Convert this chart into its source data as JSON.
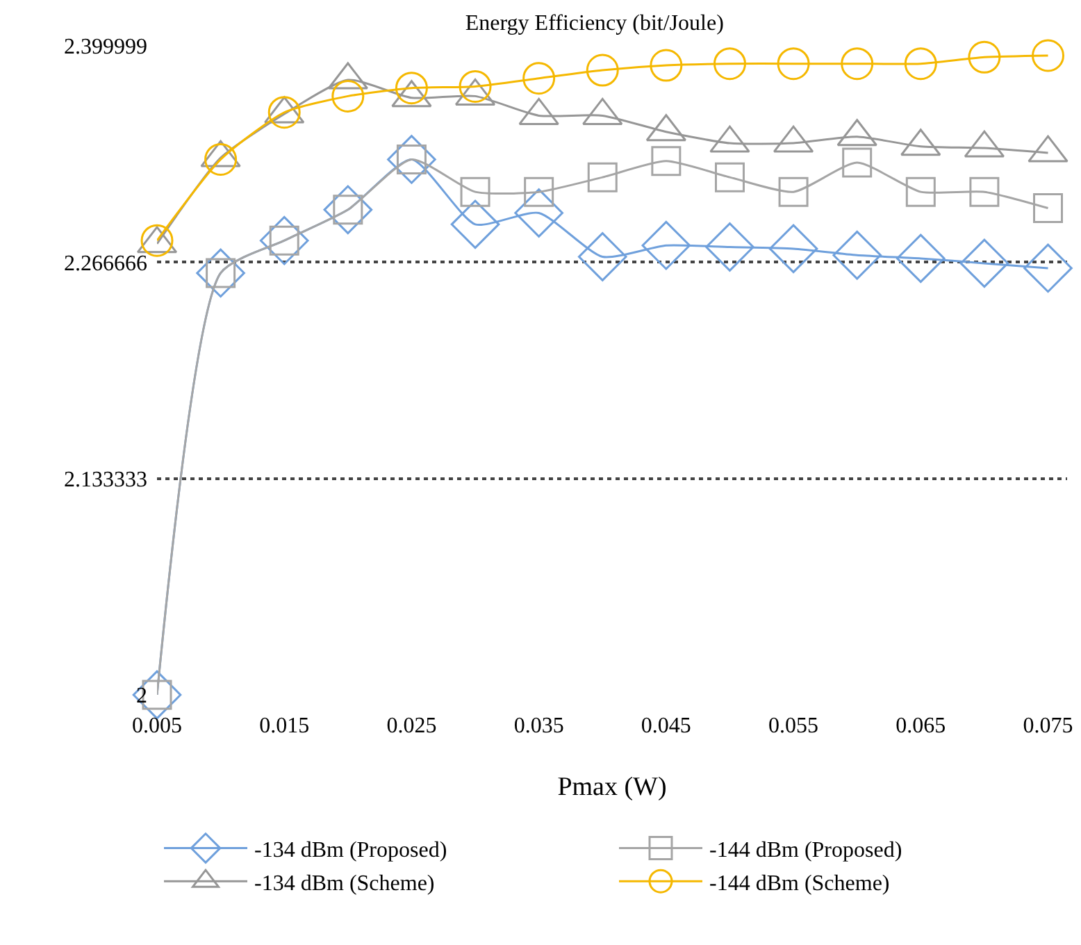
{
  "chart_data": {
    "type": "line",
    "title": "Energy Efficiency (bit/Joule)",
    "xlabel": "Pmax (W)",
    "x": [
      0.005,
      0.01,
      0.015,
      0.02,
      0.025,
      0.03,
      0.035,
      0.04,
      0.045,
      0.05,
      0.055,
      0.06,
      0.065,
      0.07,
      0.075
    ],
    "series": [
      {
        "name": "-134 dBm (Proposed)",
        "color": "#6fa0dc",
        "marker": "diamond",
        "values": [
          2.0,
          2.26,
          2.28,
          2.299,
          2.33,
          2.29,
          2.297,
          2.27,
          2.277,
          2.276,
          2.275,
          2.271,
          2.269,
          2.266,
          2.263
        ]
      },
      {
        "name": "-144 dBm (Proposed)",
        "color": "#a5a5a5",
        "marker": "square",
        "values": [
          2.0,
          2.26,
          2.28,
          2.299,
          2.33,
          2.31,
          2.31,
          2.319,
          2.329,
          2.319,
          2.31,
          2.328,
          2.31,
          2.31,
          2.3
        ]
      },
      {
        "name": "-134 dBm (Scheme)",
        "color": "#969696",
        "marker": "triangle",
        "values": [
          2.278,
          2.331,
          2.358,
          2.379,
          2.368,
          2.369,
          2.357,
          2.357,
          2.347,
          2.34,
          2.34,
          2.344,
          2.338,
          2.337,
          2.334
        ]
      },
      {
        "name": "-144 dBm (Scheme)",
        "color": "#f5b800",
        "marker": "circle",
        "values": [
          2.28,
          2.33,
          2.359,
          2.369,
          2.374,
          2.375,
          2.38,
          2.385,
          2.388,
          2.389,
          2.389,
          2.389,
          2.389,
          2.393,
          2.394
        ]
      }
    ],
    "xlim": [
      0.005,
      0.0765
    ],
    "xticks": [
      0.005,
      0.015,
      0.025,
      0.035,
      0.045,
      0.055,
      0.065,
      0.075
    ],
    "ylim": [
      2,
      2.399999
    ],
    "yticks": [
      2,
      2.133333,
      2.266666,
      2.399999
    ],
    "grid": "y",
    "legend": "bottom",
    "line_style": "solid"
  }
}
